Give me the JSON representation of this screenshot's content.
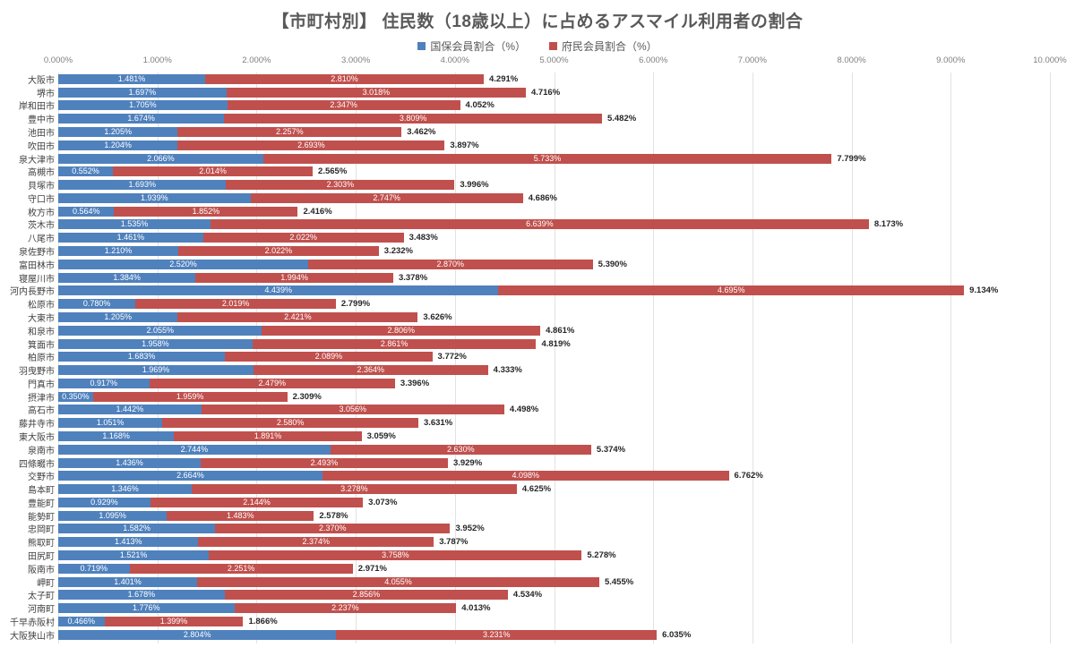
{
  "title": "【市町村別】 住民数（18歳以上）に占めるアスマイル利用者の割合",
  "legend": {
    "items": [
      {
        "label": "国保会員割合（%）",
        "color": "#4f81bd"
      },
      {
        "label": "府民会員割合（%）",
        "color": "#c0504d"
      }
    ]
  },
  "colors": {
    "nhi_blue": "#4f81bd",
    "fumin_red": "#c0504d",
    "gridline": "#e2e2e2",
    "title_text": "#595959",
    "axis_text": "#7f7f7f",
    "category_text": "#404040",
    "total_text": "#262626"
  },
  "chart_data": {
    "type": "bar",
    "orientation": "horizontal",
    "stacked": true,
    "title": "【市町村別】 住民数（18歳以上）に占めるアスマイル利用者の割合",
    "xlabel": "",
    "ylabel": "",
    "xlim": [
      0,
      10
    ],
    "grid": true,
    "legend_position": "top",
    "x_ticks": [
      "0.000%",
      "1.000%",
      "2.000%",
      "3.000%",
      "4.000%",
      "5.000%",
      "6.000%",
      "7.000%",
      "8.000%",
      "9.000%",
      "10.000%"
    ],
    "categories": [
      "大阪市",
      "堺市",
      "岸和田市",
      "豊中市",
      "池田市",
      "吹田市",
      "泉大津市",
      "高槻市",
      "貝塚市",
      "守口市",
      "枚方市",
      "茨木市",
      "八尾市",
      "泉佐野市",
      "富田林市",
      "寝屋川市",
      "河内長野市",
      "松原市",
      "大東市",
      "和泉市",
      "箕面市",
      "柏原市",
      "羽曳野市",
      "門真市",
      "摂津市",
      "高石市",
      "藤井寺市",
      "東大阪市",
      "泉南市",
      "四條畷市",
      "交野市",
      "島本町",
      "豊能町",
      "能勢町",
      "忠岡町",
      "熊取町",
      "田尻町",
      "阪南市",
      "岬町",
      "太子町",
      "河南町",
      "千早赤阪村",
      "大阪狭山市"
    ],
    "series": [
      {
        "name": "国保会員割合（%）",
        "color": "#4f81bd",
        "values": [
          1.481,
          1.697,
          1.705,
          1.674,
          1.205,
          1.204,
          2.066,
          0.552,
          1.693,
          1.939,
          0.564,
          1.535,
          1.461,
          1.21,
          2.52,
          1.384,
          4.439,
          0.78,
          1.205,
          2.055,
          1.958,
          1.683,
          1.969,
          0.917,
          0.35,
          1.442,
          1.051,
          1.168,
          2.744,
          1.436,
          2.664,
          1.346,
          0.929,
          1.095,
          1.582,
          1.413,
          1.521,
          0.719,
          1.401,
          1.678,
          1.776,
          0.466,
          2.804
        ]
      },
      {
        "name": "府民会員割合（%）",
        "color": "#c0504d",
        "values": [
          2.81,
          3.018,
          2.347,
          3.809,
          2.257,
          2.693,
          5.733,
          2.014,
          2.303,
          2.747,
          1.852,
          6.639,
          2.022,
          2.022,
          2.87,
          1.994,
          4.695,
          2.019,
          2.421,
          2.806,
          2.861,
          2.089,
          2.364,
          2.479,
          1.959,
          3.056,
          2.58,
          1.891,
          2.63,
          2.493,
          4.098,
          3.278,
          2.144,
          1.483,
          2.37,
          2.374,
          3.758,
          2.251,
          4.055,
          2.856,
          2.237,
          1.399,
          3.231
        ]
      }
    ],
    "totals": [
      4.291,
      4.716,
      4.052,
      5.482,
      3.462,
      3.897,
      7.799,
      2.565,
      3.996,
      4.686,
      2.416,
      8.173,
      3.483,
      3.232,
      5.39,
      3.378,
      9.134,
      2.799,
      3.626,
      4.861,
      4.819,
      3.772,
      4.333,
      3.396,
      2.309,
      4.498,
      3.631,
      3.059,
      5.374,
      3.929,
      6.762,
      4.625,
      3.073,
      2.578,
      3.952,
      3.787,
      5.278,
      2.971,
      5.455,
      4.534,
      4.013,
      1.866,
      6.035
    ]
  }
}
